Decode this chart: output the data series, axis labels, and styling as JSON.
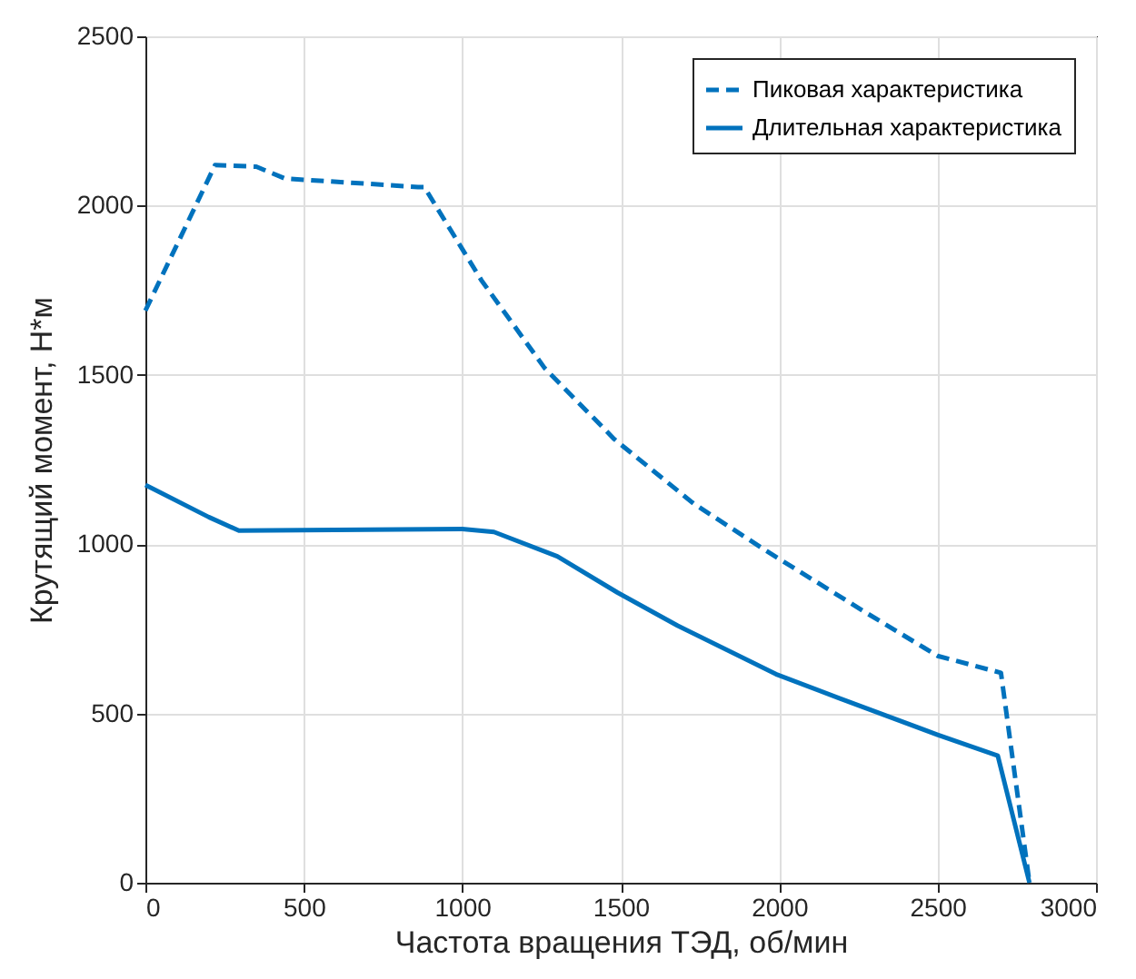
{
  "chart_data": {
    "type": "line",
    "xlabel": "Частота вращения ТЭД, об/мин",
    "ylabel": "Крутящий момент, Н*м",
    "xlim": [
      0,
      3000
    ],
    "xticks": [
      0,
      500,
      1000,
      1500,
      2000,
      2500,
      3000
    ],
    "ylim": [
      0,
      2500
    ],
    "yticks": [
      0,
      500,
      1000,
      1500,
      2000,
      2500
    ],
    "grid": true,
    "legend": "top right",
    "series": [
      {
        "name": "Пиковая характеристика",
        "color": "#0072bd",
        "line_style": "dashed",
        "x": [
          0,
          220,
          350,
          440,
          860,
          880,
          1060,
          1260,
          1480,
          1730,
          1960,
          2270,
          2500,
          2700,
          2790
        ],
        "values": [
          1690,
          2120,
          2115,
          2080,
          2055,
          2055,
          1780,
          1520,
          1310,
          1120,
          980,
          800,
          670,
          620,
          0
        ]
      },
      {
        "name": "Длительная характеристика",
        "color": "#0072bd",
        "line_style": "solid",
        "x": [
          0,
          200,
          295,
          1000,
          1100,
          1300,
          1490,
          1680,
          1990,
          2190,
          2500,
          2690,
          2790
        ],
        "values": [
          1175,
          1080,
          1040,
          1045,
          1036,
          964,
          857,
          759,
          616,
          545,
          437,
          375,
          0
        ]
      }
    ]
  }
}
